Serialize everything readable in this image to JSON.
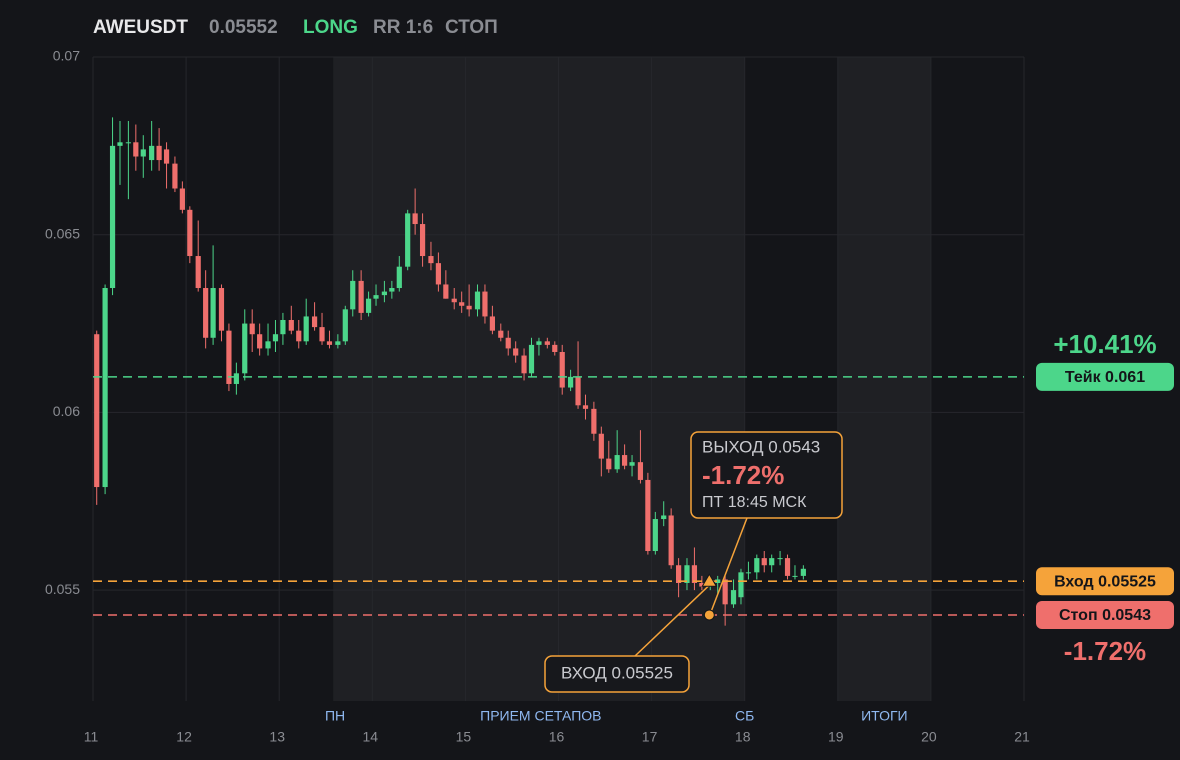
{
  "chart_data": {
    "type": "candlestick",
    "symbol": "AWEUSDT",
    "price_label": "0.05552",
    "side": "LONG",
    "rr": "RR 1:6",
    "status": "СТОП",
    "up_color": "#4cd68a",
    "down_color": "#ef6f6c",
    "x": [
      11.04,
      11.13,
      11.21,
      11.29,
      11.38,
      11.46,
      11.54,
      11.63,
      11.71,
      11.79,
      11.88,
      11.96,
      12.04,
      12.13,
      12.21,
      12.29,
      12.38,
      12.46,
      12.54,
      12.63,
      12.71,
      12.79,
      12.88,
      12.96,
      13.04,
      13.13,
      13.21,
      13.29,
      13.38,
      13.46,
      13.54,
      13.63,
      13.71,
      13.79,
      13.88,
      13.96,
      14.04,
      14.13,
      14.21,
      14.29,
      14.38,
      14.46,
      14.54,
      14.63,
      14.71,
      14.79,
      14.88,
      14.96,
      15.04,
      15.13,
      15.21,
      15.29,
      15.38,
      15.46,
      15.54,
      15.63,
      15.71,
      15.79,
      15.88,
      15.96,
      16.04,
      16.13,
      16.21,
      16.29,
      16.38,
      16.46,
      16.54,
      16.63,
      16.71,
      16.79,
      16.88,
      16.96,
      17.04,
      17.13,
      17.21,
      17.29,
      17.38,
      17.46,
      17.54,
      17.63,
      17.71,
      17.79,
      17.88,
      17.96,
      18.04,
      18.13,
      18.21,
      18.29,
      18.38,
      18.46,
      18.54,
      18.63
    ],
    "open": [
      0.0622,
      0.0579,
      0.0635,
      0.0675,
      0.0676,
      0.0676,
      0.0672,
      0.0671,
      0.0675,
      0.0674,
      0.067,
      0.0663,
      0.0657,
      0.0644,
      0.0635,
      0.0621,
      0.0635,
      0.0623,
      0.0608,
      0.0611,
      0.0625,
      0.0622,
      0.0618,
      0.062,
      0.0622,
      0.0626,
      0.0623,
      0.062,
      0.0627,
      0.0624,
      0.062,
      0.0619,
      0.062,
      0.0629,
      0.0637,
      0.0628,
      0.0632,
      0.0633,
      0.0634,
      0.0635,
      0.0641,
      0.0656,
      0.0653,
      0.0644,
      0.0642,
      0.0636,
      0.0632,
      0.0631,
      0.063,
      0.0629,
      0.0634,
      0.0627,
      0.0623,
      0.0621,
      0.0618,
      0.0616,
      0.0611,
      0.0619,
      0.062,
      0.0619,
      0.0617,
      0.0607,
      0.061,
      0.0602,
      0.0601,
      0.0594,
      0.0587,
      0.0584,
      0.0588,
      0.0585,
      0.0586,
      0.0581,
      0.0561,
      0.057,
      0.0571,
      0.0557,
      0.0552,
      0.0557,
      0.0552,
      0.0551,
      0.0552,
      0.0553,
      0.0546,
      0.0548,
      0.0555,
      0.0555,
      0.0559,
      0.0557,
      0.0559,
      0.0559,
      0.0554,
      0.0554
    ],
    "high": [
      0.0623,
      0.0636,
      0.0683,
      0.0682,
      0.0682,
      0.0681,
      0.0678,
      0.0682,
      0.068,
      0.0676,
      0.0672,
      0.0665,
      0.0658,
      0.0654,
      0.064,
      0.0647,
      0.0636,
      0.0625,
      0.0614,
      0.0629,
      0.0629,
      0.0625,
      0.0625,
      0.0626,
      0.0628,
      0.063,
      0.0626,
      0.0632,
      0.0631,
      0.0628,
      0.0623,
      0.0622,
      0.063,
      0.064,
      0.064,
      0.0634,
      0.0636,
      0.0637,
      0.0637,
      0.0644,
      0.0657,
      0.0663,
      0.0656,
      0.0648,
      0.0645,
      0.064,
      0.0635,
      0.0634,
      0.0636,
      0.0636,
      0.0636,
      0.063,
      0.0625,
      0.0623,
      0.062,
      0.0618,
      0.0621,
      0.0621,
      0.0621,
      0.062,
      0.0619,
      0.0612,
      0.062,
      0.0605,
      0.0603,
      0.0596,
      0.0592,
      0.0595,
      0.0591,
      0.0588,
      0.0595,
      0.0583,
      0.0572,
      0.0575,
      0.0573,
      0.0559,
      0.0559,
      0.0562,
      0.0554,
      0.0554,
      0.0554,
      0.0554,
      0.0553,
      0.0556,
      0.0558,
      0.056,
      0.0561,
      0.056,
      0.0561,
      0.056,
      0.0557,
      0.0557
    ],
    "low": [
      0.0574,
      0.0577,
      0.0633,
      0.0664,
      0.066,
      0.0668,
      0.0666,
      0.0668,
      0.0668,
      0.0663,
      0.0662,
      0.0656,
      0.0642,
      0.0634,
      0.0618,
      0.0619,
      0.062,
      0.0606,
      0.0605,
      0.0609,
      0.0617,
      0.0616,
      0.0616,
      0.0617,
      0.0619,
      0.0622,
      0.0618,
      0.0619,
      0.0623,
      0.0619,
      0.0618,
      0.0618,
      0.0619,
      0.0627,
      0.0626,
      0.0627,
      0.063,
      0.0631,
      0.0632,
      0.0634,
      0.064,
      0.065,
      0.0641,
      0.064,
      0.0634,
      0.0632,
      0.0629,
      0.0628,
      0.0627,
      0.0627,
      0.0625,
      0.0622,
      0.062,
      0.0616,
      0.0614,
      0.0609,
      0.061,
      0.0616,
      0.0618,
      0.0616,
      0.0605,
      0.0606,
      0.0601,
      0.0598,
      0.0592,
      0.0582,
      0.0583,
      0.0583,
      0.0584,
      0.0582,
      0.058,
      0.056,
      0.056,
      0.0568,
      0.0556,
      0.0548,
      0.055,
      0.055,
      0.055,
      0.055,
      0.0549,
      0.054,
      0.0545,
      0.0546,
      0.0553,
      0.0553,
      0.0555,
      0.0555,
      0.0557,
      0.0553,
      0.0553,
      0.0553
    ],
    "close": [
      0.0579,
      0.0635,
      0.0675,
      0.0676,
      0.0676,
      0.0672,
      0.0674,
      0.0675,
      0.0671,
      0.067,
      0.0663,
      0.0657,
      0.0644,
      0.0635,
      0.0621,
      0.0635,
      0.0623,
      0.0608,
      0.0611,
      0.0625,
      0.0622,
      0.0618,
      0.062,
      0.0622,
      0.0626,
      0.0623,
      0.062,
      0.0627,
      0.0624,
      0.062,
      0.0619,
      0.062,
      0.0629,
      0.0637,
      0.0628,
      0.0632,
      0.0633,
      0.0634,
      0.0635,
      0.0641,
      0.0656,
      0.0653,
      0.0644,
      0.0642,
      0.0636,
      0.0632,
      0.0631,
      0.063,
      0.0629,
      0.0634,
      0.0627,
      0.0623,
      0.0621,
      0.0618,
      0.0616,
      0.0611,
      0.0619,
      0.062,
      0.0619,
      0.0617,
      0.0607,
      0.061,
      0.0602,
      0.0601,
      0.0594,
      0.0587,
      0.0584,
      0.0588,
      0.0585,
      0.0586,
      0.0581,
      0.0561,
      0.057,
      0.0571,
      0.0557,
      0.0552,
      0.0557,
      0.0552,
      0.0551,
      0.0552,
      0.0553,
      0.0546,
      0.055,
      0.0555,
      0.0555,
      0.0559,
      0.0557,
      0.0559,
      0.0559,
      0.0554,
      0.0554,
      0.0556
    ],
    "xlim": [
      11,
      21
    ],
    "xticks": [
      11,
      12,
      13,
      14,
      15,
      16,
      17,
      18,
      19,
      20,
      21
    ],
    "ylim": [
      0.05188,
      0.07
    ],
    "yticks": [
      0.055,
      0.06,
      0.065,
      0.07
    ],
    "grid": true,
    "regions": [
      {
        "start": 13.58,
        "end": 18
      },
      {
        "start": 19,
        "end": 20
      }
    ],
    "period_labels": [
      {
        "label": "ПН",
        "x": 13.6
      },
      {
        "label": "ПРИЕМ СЕТАПОВ",
        "x": 15.81
      },
      {
        "label": "СБ",
        "x": 18
      },
      {
        "label": "ИТОГИ",
        "x": 19.5
      }
    ],
    "levels": [
      {
        "name": "Тейк 0.061",
        "value": 0.061,
        "color": "#4cd68a"
      },
      {
        "name": "Вход 0.05525",
        "value": 0.05525,
        "color": "#f5a33a"
      },
      {
        "name": "Стоп 0.0543",
        "value": 0.0543,
        "color": "#ef6f6c"
      }
    ],
    "take_profit_pct": "+10.41%",
    "stop_loss_pct": "-1.72%",
    "exit_annotation": {
      "title": "ВЫХОД 0.0543",
      "pct": "-1.72%",
      "time": "ПТ 18:45 МСК"
    },
    "entry_annotation": {
      "title": "ВХОД 0.05525"
    },
    "entry_marker": {
      "x": 17.62,
      "y": 0.05525
    },
    "exit_marker": {
      "x": 17.62,
      "y": 0.0543
    }
  }
}
